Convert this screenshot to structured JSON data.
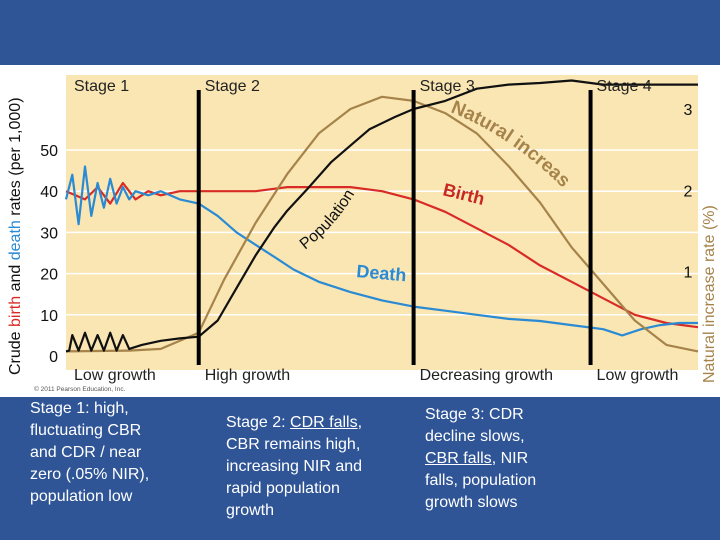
{
  "chart_data": {
    "type": "line",
    "title": "",
    "copyright": "© 2011 Pearson Education, Inc.",
    "ylabel_left_parts": [
      "Crude ",
      "birth",
      " and ",
      "death",
      " rates (per 1,000)"
    ],
    "ylabel_right": "Natural increase rate (%)",
    "ylim_left": [
      0,
      60
    ],
    "yticks_left": [
      0,
      10,
      20,
      30,
      40,
      50
    ],
    "ylim_right": [
      0,
      3.5
    ],
    "yticks_right": [
      1,
      2,
      3
    ],
    "xlim": [
      0,
      100
    ],
    "stages": [
      {
        "label": "Stage 1",
        "bottom_label": "Low growth",
        "start": 0
      },
      {
        "label": "Stage 2",
        "bottom_label": "High growth",
        "start": 21
      },
      {
        "label": "Stage 3",
        "bottom_label": "Decreasing growth",
        "start": 55
      },
      {
        "label": "Stage 4",
        "bottom_label": "Low growth",
        "start": 83
      }
    ],
    "series": [
      {
        "name": "Birth",
        "color": "#d92b26",
        "axis": "left",
        "points": [
          [
            0,
            40
          ],
          [
            3,
            38
          ],
          [
            5,
            41
          ],
          [
            7,
            37
          ],
          [
            9,
            42
          ],
          [
            11,
            38
          ],
          [
            13,
            40
          ],
          [
            15,
            39
          ],
          [
            18,
            40
          ],
          [
            21,
            40
          ],
          [
            25,
            40
          ],
          [
            30,
            40
          ],
          [
            35,
            41
          ],
          [
            40,
            41
          ],
          [
            45,
            41
          ],
          [
            50,
            40
          ],
          [
            55,
            38
          ],
          [
            60,
            35
          ],
          [
            65,
            31
          ],
          [
            70,
            27
          ],
          [
            75,
            22
          ],
          [
            80,
            18
          ],
          [
            85,
            14
          ],
          [
            90,
            10
          ],
          [
            95,
            8
          ],
          [
            100,
            7
          ]
        ]
      },
      {
        "name": "Death",
        "color": "#2a8ad3",
        "axis": "left",
        "points": [
          [
            0,
            38
          ],
          [
            1,
            44
          ],
          [
            2,
            32
          ],
          [
            3,
            46
          ],
          [
            4,
            34
          ],
          [
            5,
            42
          ],
          [
            6,
            36
          ],
          [
            7,
            43
          ],
          [
            8,
            37
          ],
          [
            9,
            41
          ],
          [
            10,
            38
          ],
          [
            11,
            40
          ],
          [
            13,
            39
          ],
          [
            15,
            40
          ],
          [
            18,
            38
          ],
          [
            21,
            37
          ],
          [
            24,
            34
          ],
          [
            27,
            30
          ],
          [
            30,
            27
          ],
          [
            33,
            24
          ],
          [
            36,
            21
          ],
          [
            40,
            18
          ],
          [
            45,
            15.5
          ],
          [
            50,
            13.5
          ],
          [
            55,
            12
          ],
          [
            60,
            11
          ],
          [
            65,
            10
          ],
          [
            70,
            9
          ],
          [
            75,
            8.5
          ],
          [
            80,
            7.5
          ],
          [
            85,
            6.5
          ],
          [
            88,
            5
          ],
          [
            91,
            6.5
          ],
          [
            94,
            7.5
          ],
          [
            97,
            8
          ],
          [
            100,
            8
          ]
        ]
      },
      {
        "name": "Natural increase",
        "color": "#a6834a",
        "axis": "right",
        "points": [
          [
            0,
            0.02
          ],
          [
            10,
            0.03
          ],
          [
            15,
            0.05
          ],
          [
            21,
            0.25
          ],
          [
            25,
            0.9
          ],
          [
            30,
            1.6
          ],
          [
            35,
            2.2
          ],
          [
            40,
            2.7
          ],
          [
            45,
            3.0
          ],
          [
            50,
            3.15
          ],
          [
            55,
            3.1
          ],
          [
            60,
            2.95
          ],
          [
            65,
            2.7
          ],
          [
            70,
            2.3
          ],
          [
            75,
            1.85
          ],
          [
            80,
            1.3
          ],
          [
            85,
            0.85
          ],
          [
            90,
            0.4
          ],
          [
            95,
            0.1
          ],
          [
            100,
            0.02
          ]
        ]
      },
      {
        "name": "Population",
        "color": "#111111",
        "axis": "right",
        "points": [
          [
            0,
            0.02
          ],
          [
            0.5,
            0.03
          ],
          [
            1,
            0.22
          ],
          [
            2,
            0.03
          ],
          [
            3,
            0.25
          ],
          [
            4,
            0.03
          ],
          [
            5,
            0.22
          ],
          [
            6,
            0.03
          ],
          [
            7,
            0.25
          ],
          [
            8,
            0.03
          ],
          [
            9,
            0.22
          ],
          [
            10,
            0.05
          ],
          [
            12,
            0.1
          ],
          [
            15,
            0.15
          ],
          [
            18,
            0.18
          ],
          [
            21,
            0.2
          ],
          [
            24,
            0.4
          ],
          [
            27,
            0.8
          ],
          [
            30,
            1.2
          ],
          [
            33,
            1.55
          ],
          [
            35,
            1.75
          ],
          [
            38,
            2.0
          ],
          [
            42,
            2.35
          ],
          [
            45,
            2.55
          ],
          [
            48,
            2.75
          ],
          [
            52,
            2.9
          ],
          [
            55,
            3.0
          ],
          [
            60,
            3.1
          ],
          [
            65,
            3.25
          ],
          [
            70,
            3.3
          ],
          [
            75,
            3.32
          ],
          [
            80,
            3.35
          ],
          [
            85,
            3.3
          ],
          [
            90,
            3.3
          ],
          [
            95,
            3.3
          ],
          [
            100,
            3.3
          ]
        ]
      }
    ],
    "annotations": [
      {
        "text": "Natural increase",
        "series": "Natural increase"
      },
      {
        "text": "Birth",
        "series": "Birth"
      },
      {
        "text": "Death",
        "series": "Death"
      },
      {
        "text": "Population",
        "series": "Population"
      }
    ]
  },
  "captions": {
    "stage1": [
      "Stage 1: high,",
      "fluctuating CBR",
      "and CDR / near",
      "zero (.05% NIR),",
      "population low"
    ],
    "stage2": [
      [
        {
          "t": "Stage 2: ",
          "u": false
        },
        {
          "t": "CDR falls",
          "u": true
        },
        {
          "t": ",",
          "u": false
        }
      ],
      [
        {
          "t": "CBR remains high,",
          "u": false
        }
      ],
      [
        {
          "t": "increasing NIR and",
          "u": false
        }
      ],
      [
        {
          "t": "rapid population",
          "u": false
        }
      ],
      [
        {
          "t": "growth",
          "u": false
        }
      ]
    ],
    "stage3": [
      [
        {
          "t": "Stage 3: CDR",
          "u": false
        }
      ],
      [
        {
          "t": "decline slows,",
          "u": false
        }
      ],
      [
        {
          "t": "CBR falls",
          "u": true
        },
        {
          "t": ", NIR",
          "u": false
        }
      ],
      [
        {
          "t": "falls, population",
          "u": false
        }
      ],
      [
        {
          "t": "growth slows",
          "u": false
        }
      ]
    ]
  }
}
